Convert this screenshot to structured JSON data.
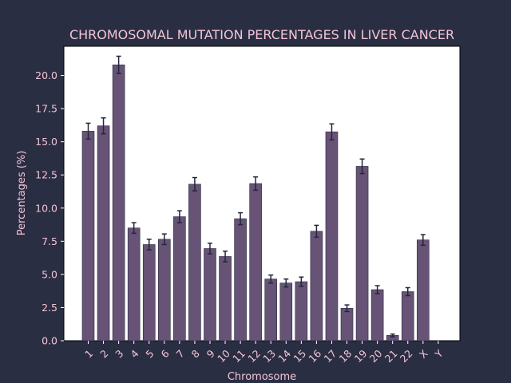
{
  "chart_data": {
    "type": "bar",
    "title": "CHROMOSOMAL MUTATION PERCENTAGES IN LIVER CANCER",
    "xlabel": "Chromosome",
    "ylabel": "Percentages (%)",
    "ylim": [
      0,
      22.2
    ],
    "yticks": [
      "0.0",
      "2.5",
      "5.0",
      "7.5",
      "10.0",
      "12.5",
      "15.0",
      "17.5",
      "20.0"
    ],
    "categories": [
      "1",
      "2",
      "3",
      "4",
      "5",
      "6",
      "7",
      "8",
      "9",
      "10",
      "11",
      "12",
      "13",
      "14",
      "15",
      "16",
      "17",
      "18",
      "19",
      "20",
      "21",
      "22",
      "X",
      "Y"
    ],
    "values": [
      15.8,
      16.2,
      20.8,
      8.5,
      7.25,
      7.65,
      9.35,
      11.8,
      6.95,
      6.35,
      9.2,
      11.85,
      4.65,
      4.35,
      4.45,
      8.25,
      15.75,
      2.45,
      13.15,
      3.85,
      0.4,
      3.7,
      7.6,
      0.0
    ],
    "errors": [
      0.6,
      0.6,
      0.65,
      0.4,
      0.4,
      0.4,
      0.45,
      0.5,
      0.4,
      0.4,
      0.45,
      0.5,
      0.3,
      0.3,
      0.35,
      0.45,
      0.6,
      0.25,
      0.55,
      0.3,
      0.1,
      0.3,
      0.4,
      0.0
    ],
    "grid": false,
    "legend": "none",
    "colors": {
      "bar": "#675375",
      "background": "#2a2e43",
      "text": "#f2c4d6",
      "error_bar": "#23263a"
    }
  }
}
